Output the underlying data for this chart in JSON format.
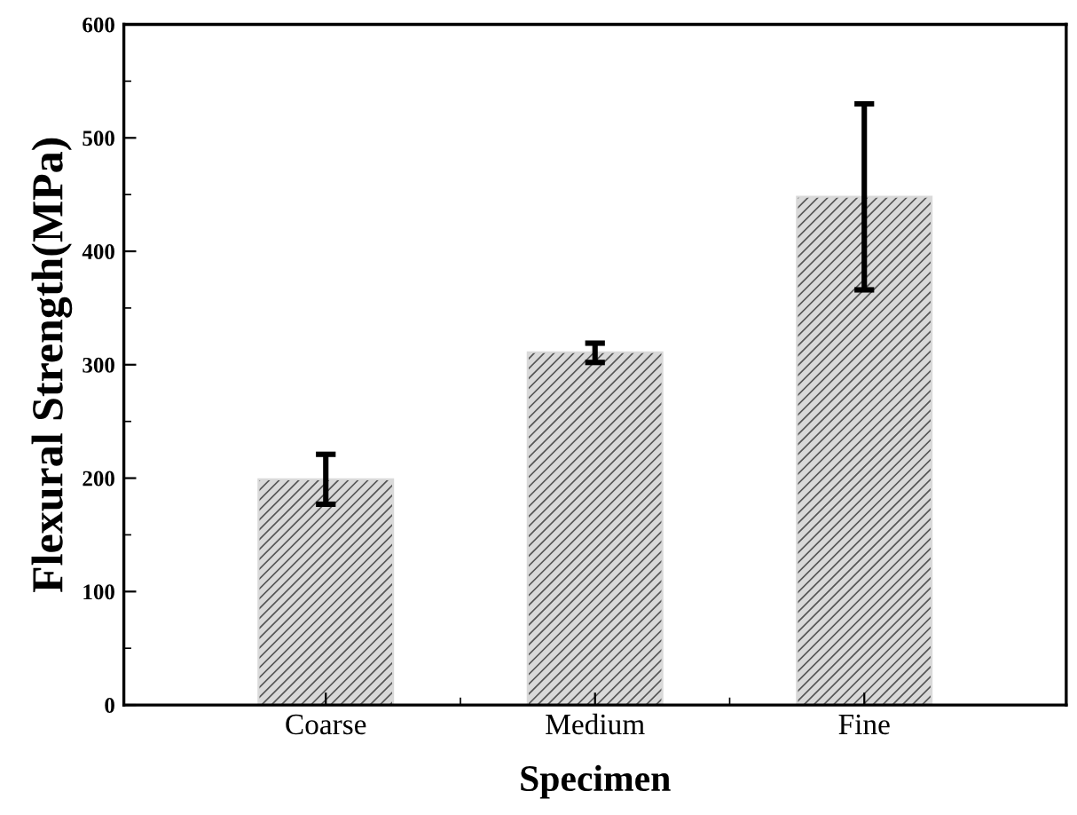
{
  "chart_data": {
    "type": "bar",
    "xlabel": "Specimen",
    "ylabel": "Flexural Strength(MPa)",
    "categories": [
      "Coarse",
      "Medium",
      "Fine"
    ],
    "values": [
      199,
      311,
      448
    ],
    "errors": [
      [
        177,
        221
      ],
      [
        302,
        319
      ],
      [
        366,
        530
      ]
    ],
    "color": "#d9d9d9",
    "ylim": [
      0,
      600
    ],
    "yticks": [
      0,
      100,
      200,
      300,
      400,
      500,
      600
    ],
    "grid": false,
    "legend": false
  }
}
